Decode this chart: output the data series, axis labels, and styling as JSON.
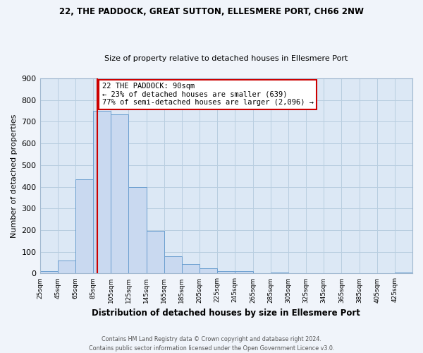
{
  "title": "22, THE PADDOCK, GREAT SUTTON, ELLESMERE PORT, CH66 2NW",
  "subtitle": "Size of property relative to detached houses in Ellesmere Port",
  "xlabel": "Distribution of detached houses by size in Ellesmere Port",
  "ylabel": "Number of detached properties",
  "bin_edges": [
    25,
    45,
    65,
    85,
    105,
    125,
    145,
    165,
    185,
    205,
    225,
    245,
    265,
    285,
    305,
    325,
    345,
    365,
    385,
    405,
    425,
    445
  ],
  "counts": [
    10,
    60,
    435,
    750,
    735,
    400,
    197,
    78,
    43,
    25,
    10,
    10,
    0,
    5,
    0,
    0,
    0,
    0,
    0,
    0,
    5
  ],
  "bar_color": "#c9d9f0",
  "bar_edge_color": "#6a9ecf",
  "property_line_x": 90,
  "property_line_color": "#cc0000",
  "annotation_title": "22 THE PADDOCK: 90sqm",
  "annotation_line1": "← 23% of detached houses are smaller (639)",
  "annotation_line2": "77% of semi-detached houses are larger (2,096) →",
  "annotation_box_color": "#ffffff",
  "annotation_box_edge_color": "#cc0000",
  "ylim": [
    0,
    900
  ],
  "yticks": [
    0,
    100,
    200,
    300,
    400,
    500,
    600,
    700,
    800,
    900
  ],
  "grid_color": "#b8cee0",
  "plot_bg_color": "#dce8f5",
  "fig_bg_color": "#f0f4fa",
  "footer_line1": "Contains HM Land Registry data © Crown copyright and database right 2024.",
  "footer_line2": "Contains public sector information licensed under the Open Government Licence v3.0.",
  "tick_labels": [
    "25sqm",
    "45sqm",
    "65sqm",
    "85sqm",
    "105sqm",
    "125sqm",
    "145sqm",
    "165sqm",
    "185sqm",
    "205sqm",
    "225sqm",
    "245sqm",
    "265sqm",
    "285sqm",
    "305sqm",
    "325sqm",
    "345sqm",
    "365sqm",
    "385sqm",
    "405sqm",
    "425sqm"
  ]
}
